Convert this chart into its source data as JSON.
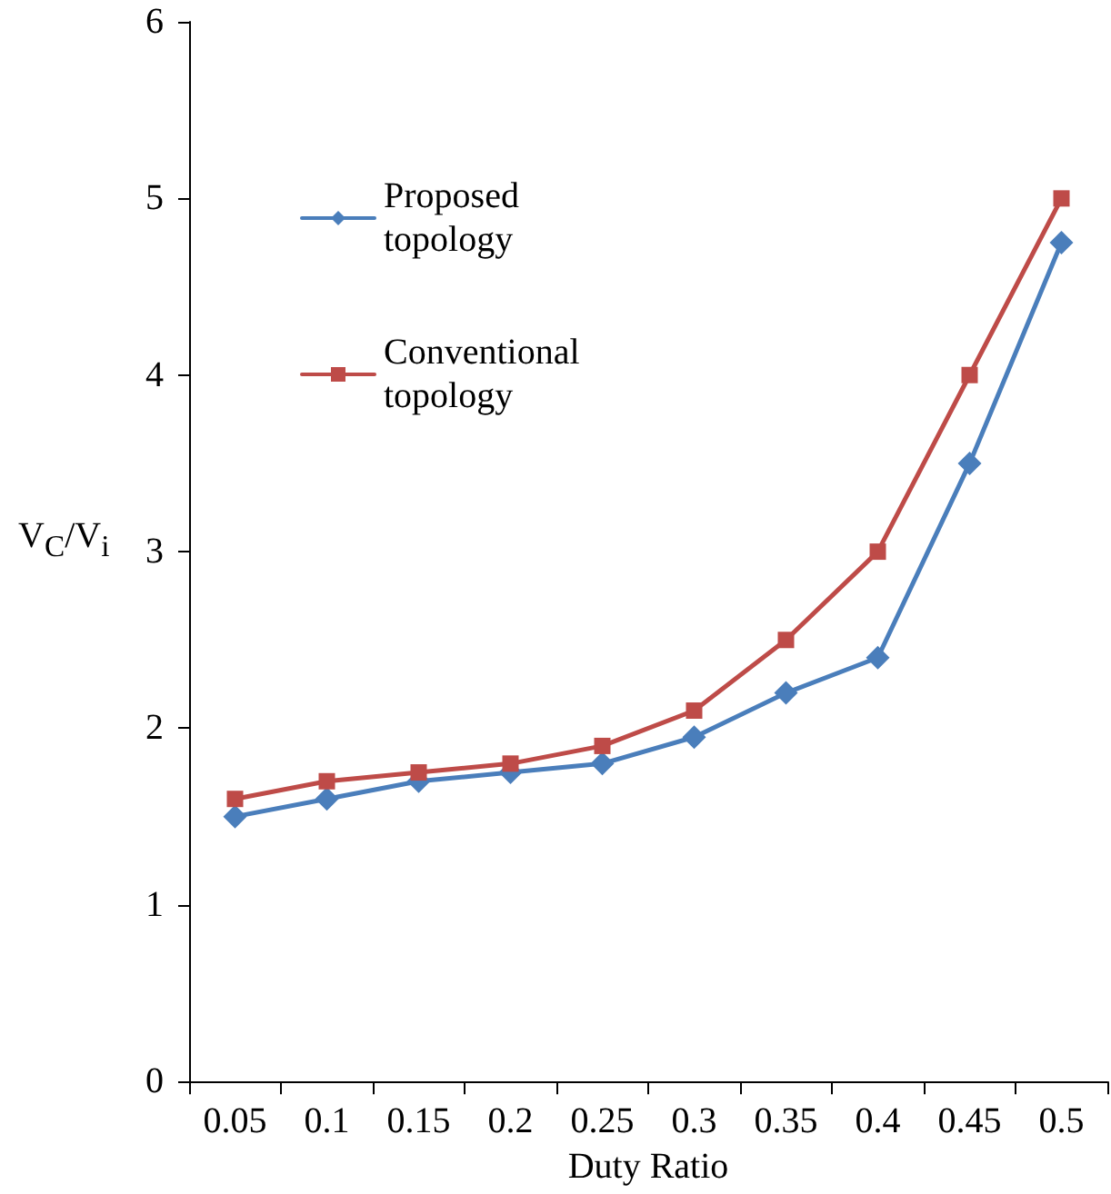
{
  "chart_data": {
    "type": "line",
    "xlabel": "Duty Ratio",
    "ylabel": "V$_{C}$/V$_{i}$",
    "categories": [
      "0.05",
      "0.1",
      "0.15",
      "0.2",
      "0.25",
      "0.3",
      "0.35",
      "0.4",
      "0.45",
      "0.5"
    ],
    "series": [
      {
        "name": "Proposed topology",
        "color": "#4a7ebb",
        "marker": "diamond",
        "values": [
          1.5,
          1.6,
          1.7,
          1.75,
          1.8,
          1.95,
          2.2,
          2.4,
          3.5,
          4.75
        ]
      },
      {
        "name": "Conventional topology",
        "color": "#be4b48",
        "marker": "square",
        "values": [
          1.6,
          1.7,
          1.75,
          1.8,
          1.9,
          2.1,
          2.5,
          3.0,
          4.0,
          5.0
        ]
      }
    ],
    "ylim": [
      0,
      6
    ],
    "yticks": [
      0,
      1,
      2,
      3,
      4,
      5,
      6
    ],
    "grid": false,
    "legend": "top left",
    "line_style": "solid"
  }
}
